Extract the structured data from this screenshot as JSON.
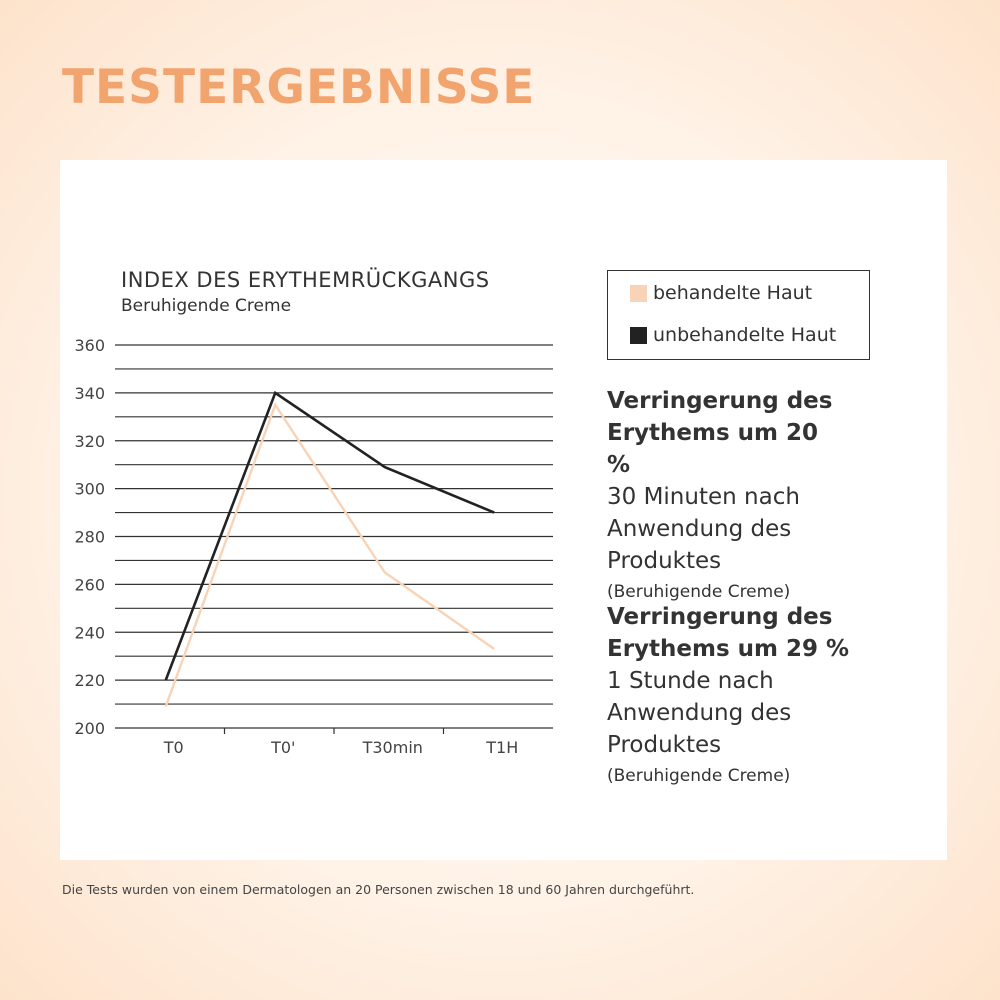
{
  "title": "TESTERGEBNISSE",
  "chart_data": {
    "type": "line",
    "title": "INDEX DES ERYTHEMRÜCKGANGS",
    "subtitle": "Beruhigende Creme",
    "categories": [
      "T0",
      "T0'",
      "T30min",
      "T1H"
    ],
    "ylim": [
      200,
      360
    ],
    "yticks": [
      200,
      220,
      240,
      260,
      280,
      300,
      320,
      340,
      360
    ],
    "grid": true,
    "legend_position": "right",
    "series": [
      {
        "name": "behandelte Haut",
        "color": "#f9d3b5",
        "values": [
          209,
          335,
          265,
          233
        ]
      },
      {
        "name": "unbehandelte Haut",
        "color": "#222222",
        "values": [
          220,
          340,
          309,
          290
        ]
      }
    ]
  },
  "notes": [
    {
      "bold": "Verringerung des Erythems um 20 %",
      "text": "30 Minuten nach Anwendung des Produktes",
      "small": "(Beruhigende Creme)"
    },
    {
      "bold": "Verringerung des Erythems um 29 %",
      "text": "1 Stunde nach Anwendung des Produktes",
      "small": "(Beruhigende Creme)"
    }
  ],
  "footnote": "Die Tests wurden von einem Dermatologen an 20 Personen zwischen 18 und 60 Jahren durchgeführt."
}
